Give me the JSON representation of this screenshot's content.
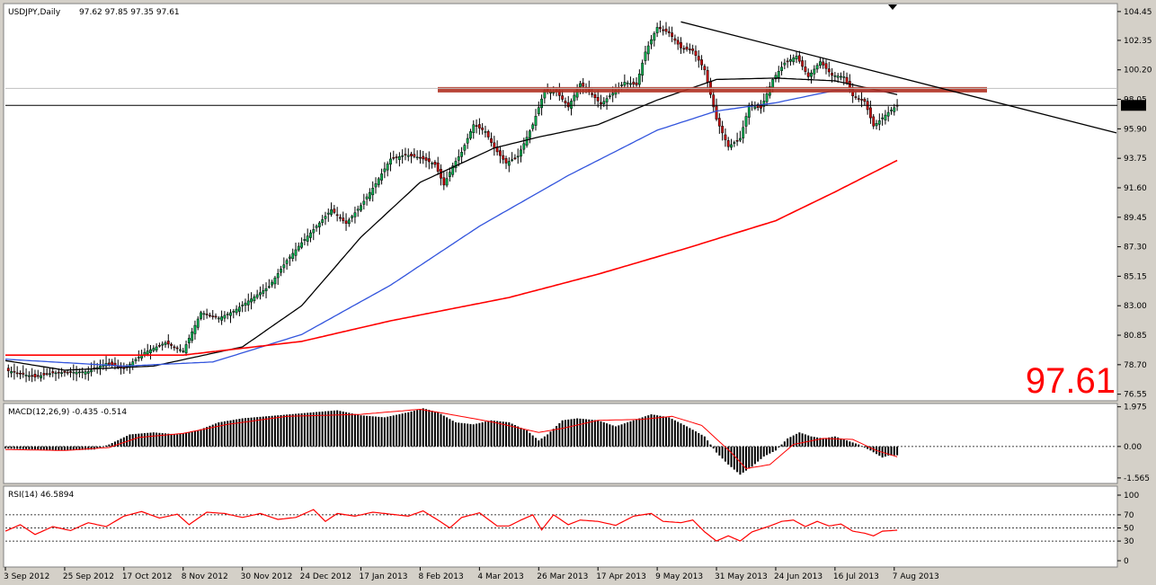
{
  "chart_data": [
    {
      "type": "candlestick",
      "title": "USDJPY,Daily",
      "ohlc_label": "97.62 97.85 97.35 97.61",
      "current_price": 97.61,
      "current_price_label": "97.61",
      "big_price_label": "97.61",
      "ylim": [
        76.2,
        104.9
      ],
      "y_ticks": [
        "104.45",
        "102.35",
        "100.20",
        "98.05",
        "95.90",
        "93.75",
        "91.60",
        "89.45",
        "87.30",
        "85.15",
        "83.00",
        "80.85",
        "78.70",
        "76.55"
      ],
      "x_ticks": [
        "3 Sep 2012",
        "25 Sep 2012",
        "17 Oct 2012",
        "8 Nov 2012",
        "30 Nov 2012",
        "24 Dec 2012",
        "17 Jan 2013",
        "8 Feb 2013",
        "4 Mar 2013",
        "26 Mar 2013",
        "17 Apr 2013",
        "9 May 2013",
        "31 May 2013",
        "24 Jun 2013",
        "16 Jul 2013",
        "7 Aug 2013"
      ],
      "close_anchors": [
        [
          0,
          78.3
        ],
        [
          10,
          77.8
        ],
        [
          16,
          78.1
        ],
        [
          28,
          78.2
        ],
        [
          34,
          78.8
        ],
        [
          40,
          78.4
        ],
        [
          47,
          79.6
        ],
        [
          54,
          80.3
        ],
        [
          60,
          79.7
        ],
        [
          66,
          82.5
        ],
        [
          72,
          82.1
        ],
        [
          77,
          82.6
        ],
        [
          83,
          83.5
        ],
        [
          89,
          84.4
        ],
        [
          95,
          86.3
        ],
        [
          100,
          87.6
        ],
        [
          105,
          88.8
        ],
        [
          110,
          90.0
        ],
        [
          115,
          89.0
        ],
        [
          120,
          90.3
        ],
        [
          125,
          91.9
        ],
        [
          130,
          93.7
        ],
        [
          135,
          94.0
        ],
        [
          140,
          93.8
        ],
        [
          145,
          93.3
        ],
        [
          148,
          91.8
        ],
        [
          151,
          93.2
        ],
        [
          154,
          94.2
        ],
        [
          158,
          96.2
        ],
        [
          162,
          95.7
        ],
        [
          165,
          94.5
        ],
        [
          169,
          93.4
        ],
        [
          173,
          93.9
        ],
        [
          178,
          96.2
        ],
        [
          182,
          98.7
        ],
        [
          186,
          98.6
        ],
        [
          190,
          97.5
        ],
        [
          194,
          99.2
        ],
        [
          198,
          98.4
        ],
        [
          201,
          97.7
        ],
        [
          205,
          98.5
        ],
        [
          209,
          99.3
        ],
        [
          213,
          99.1
        ],
        [
          216,
          101.5
        ],
        [
          220,
          103.3
        ],
        [
          224,
          102.9
        ],
        [
          228,
          101.8
        ],
        [
          232,
          101.6
        ],
        [
          236,
          100.2
        ],
        [
          240,
          96.6
        ],
        [
          244,
          94.6
        ],
        [
          248,
          95.2
        ],
        [
          251,
          97.6
        ],
        [
          255,
          97.4
        ],
        [
          259,
          99.5
        ],
        [
          263,
          100.7
        ],
        [
          267,
          101.2
        ],
        [
          271,
          99.7
        ],
        [
          275,
          100.8
        ],
        [
          279,
          99.8
        ],
        [
          283,
          99.7
        ],
        [
          286,
          98.3
        ],
        [
          290,
          97.9
        ],
        [
          293,
          96.1
        ],
        [
          296,
          96.7
        ],
        [
          298,
          97.1
        ],
        [
          301,
          97.61
        ]
      ],
      "series": [
        {
          "name": "",
          "color": "#000000",
          "anchors": [
            [
              0,
              79.0
            ],
            [
              20,
              78.3
            ],
            [
              50,
              78.6
            ],
            [
              80,
              80.0
            ],
            [
              100,
              83.0
            ],
            [
              120,
              88.0
            ],
            [
              140,
              92.0
            ],
            [
              165,
              94.5
            ],
            [
              180,
              95.3
            ],
            [
              200,
              96.2
            ],
            [
              220,
              98.0
            ],
            [
              240,
              99.5
            ],
            [
              260,
              99.6
            ],
            [
              280,
              99.4
            ],
            [
              301,
              98.4
            ]
          ]
        },
        {
          "name": "",
          "color": "#3355dd",
          "anchors": [
            [
              0,
              79.1
            ],
            [
              40,
              78.6
            ],
            [
              70,
              78.9
            ],
            [
              100,
              80.9
            ],
            [
              130,
              84.5
            ],
            [
              160,
              88.8
            ],
            [
              190,
              92.5
            ],
            [
              220,
              95.8
            ],
            [
              240,
              97.2
            ],
            [
              260,
              97.8
            ],
            [
              280,
              98.7
            ],
            [
              301,
              98.6
            ]
          ]
        },
        {
          "name": "",
          "color": "#ff0000",
          "anchors": [
            [
              0,
              79.4
            ],
            [
              60,
              79.4
            ],
            [
              100,
              80.4
            ],
            [
              130,
              81.9
            ],
            [
              170,
              83.6
            ],
            [
              200,
              85.3
            ],
            [
              230,
              87.2
            ],
            [
              260,
              89.2
            ],
            [
              280,
              91.3
            ],
            [
              301,
              93.6
            ]
          ]
        }
      ],
      "resistance": {
        "value": 98.75,
        "color": "#b03020"
      },
      "trendline": {
        "from": [
          228,
          103.7
        ],
        "to": [
          375,
          95.6
        ]
      },
      "x_index_range": [
        0,
        375
      ]
    },
    {
      "type": "histogram",
      "title": "MACD(12,26,9) -0.435 -0.514",
      "ylim": [
        -1.75,
        2.05
      ],
      "y_ticks": [
        "1.975",
        "0.00",
        "-1.565"
      ],
      "main_anchors": [
        [
          0,
          -0.1
        ],
        [
          10,
          -0.15
        ],
        [
          20,
          -0.2
        ],
        [
          30,
          -0.15
        ],
        [
          35,
          0.1
        ],
        [
          42,
          0.6
        ],
        [
          50,
          0.7
        ],
        [
          58,
          0.6
        ],
        [
          65,
          0.8
        ],
        [
          72,
          1.2
        ],
        [
          80,
          1.4
        ],
        [
          88,
          1.5
        ],
        [
          96,
          1.6
        ],
        [
          104,
          1.7
        ],
        [
          112,
          1.8
        ],
        [
          120,
          1.55
        ],
        [
          128,
          1.45
        ],
        [
          136,
          1.7
        ],
        [
          141,
          1.9
        ],
        [
          146,
          1.7
        ],
        [
          152,
          1.2
        ],
        [
          158,
          1.1
        ],
        [
          164,
          1.3
        ],
        [
          170,
          1.2
        ],
        [
          176,
          0.8
        ],
        [
          180,
          0.3
        ],
        [
          183,
          0.6
        ],
        [
          188,
          1.3
        ],
        [
          193,
          1.4
        ],
        [
          200,
          1.3
        ],
        [
          206,
          1.0
        ],
        [
          212,
          1.3
        ],
        [
          218,
          1.6
        ],
        [
          224,
          1.45
        ],
        [
          230,
          1.0
        ],
        [
          236,
          0.5
        ],
        [
          240,
          -0.3
        ],
        [
          244,
          -0.9
        ],
        [
          248,
          -1.4
        ],
        [
          252,
          -1.0
        ],
        [
          256,
          -0.5
        ],
        [
          260,
          -0.2
        ],
        [
          264,
          0.4
        ],
        [
          268,
          0.7
        ],
        [
          272,
          0.5
        ],
        [
          276,
          0.4
        ],
        [
          280,
          0.5
        ],
        [
          284,
          0.3
        ],
        [
          288,
          0.1
        ],
        [
          292,
          -0.2
        ],
        [
          296,
          -0.55
        ],
        [
          298,
          -0.45
        ],
        [
          301,
          -0.435
        ]
      ],
      "signal_anchors": [
        [
          0,
          -0.15
        ],
        [
          20,
          -0.2
        ],
        [
          35,
          -0.05
        ],
        [
          45,
          0.45
        ],
        [
          60,
          0.65
        ],
        [
          75,
          1.1
        ],
        [
          95,
          1.5
        ],
        [
          120,
          1.6
        ],
        [
          140,
          1.85
        ],
        [
          150,
          1.6
        ],
        [
          165,
          1.2
        ],
        [
          180,
          0.7
        ],
        [
          188,
          0.9
        ],
        [
          200,
          1.3
        ],
        [
          215,
          1.35
        ],
        [
          225,
          1.5
        ],
        [
          235,
          1.05
        ],
        [
          245,
          -0.3
        ],
        [
          250,
          -1.1
        ],
        [
          258,
          -0.9
        ],
        [
          266,
          0.1
        ],
        [
          276,
          0.4
        ],
        [
          286,
          0.35
        ],
        [
          294,
          -0.2
        ],
        [
          301,
          -0.514
        ]
      ]
    },
    {
      "type": "line",
      "title": "RSI(14) 46.5894",
      "ylim": [
        0,
        100
      ],
      "y_ticks": [
        "100",
        "70",
        "50",
        "30",
        "0"
      ],
      "levels": [
        70,
        50,
        30
      ],
      "anchors": [
        [
          0,
          45
        ],
        [
          5,
          55
        ],
        [
          10,
          40
        ],
        [
          16,
          52
        ],
        [
          22,
          46
        ],
        [
          28,
          58
        ],
        [
          34,
          52
        ],
        [
          40,
          68
        ],
        [
          46,
          75
        ],
        [
          52,
          65
        ],
        [
          58,
          71
        ],
        [
          62,
          55
        ],
        [
          68,
          74
        ],
        [
          74,
          72
        ],
        [
          80,
          66
        ],
        [
          86,
          72
        ],
        [
          92,
          63
        ],
        [
          98,
          66
        ],
        [
          104,
          78
        ],
        [
          108,
          60
        ],
        [
          112,
          72
        ],
        [
          118,
          68
        ],
        [
          124,
          74
        ],
        [
          130,
          71
        ],
        [
          136,
          68
        ],
        [
          141,
          76
        ],
        [
          146,
          62
        ],
        [
          150,
          50
        ],
        [
          154,
          66
        ],
        [
          160,
          73
        ],
        [
          166,
          53
        ],
        [
          170,
          53
        ],
        [
          174,
          62
        ],
        [
          178,
          70
        ],
        [
          181,
          47
        ],
        [
          185,
          70
        ],
        [
          190,
          55
        ],
        [
          194,
          62
        ],
        [
          200,
          60
        ],
        [
          206,
          54
        ],
        [
          212,
          68
        ],
        [
          218,
          72
        ],
        [
          222,
          60
        ],
        [
          228,
          58
        ],
        [
          232,
          62
        ],
        [
          236,
          44
        ],
        [
          240,
          30
        ],
        [
          244,
          38
        ],
        [
          248,
          30
        ],
        [
          252,
          44
        ],
        [
          258,
          53
        ],
        [
          262,
          60
        ],
        [
          266,
          62
        ],
        [
          270,
          52
        ],
        [
          274,
          60
        ],
        [
          278,
          53
        ],
        [
          282,
          56
        ],
        [
          286,
          45
        ],
        [
          290,
          42
        ],
        [
          293,
          38
        ],
        [
          296,
          45
        ],
        [
          301,
          46.59
        ]
      ]
    }
  ]
}
